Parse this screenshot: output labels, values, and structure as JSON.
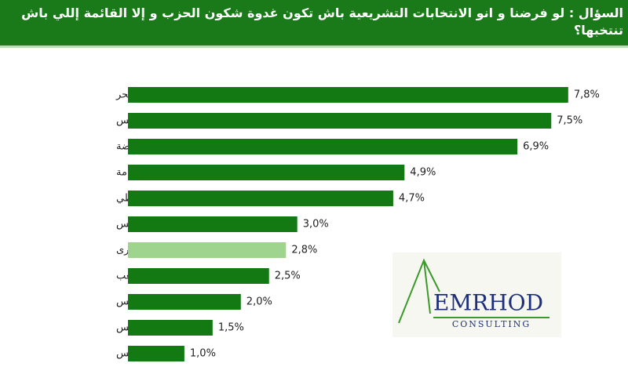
{
  "chart_data": {
    "type": "hbar",
    "title": "السؤال : لو فرضنا و انو الانتخابات التشريعية باش تكون غدوة شكون الحزب و إلا القائمة إللي باش تنتخبها؟",
    "categories": [
      "الحزب الدستوري الحر",
      "حزب قلب تونس",
      "حركة النهضة",
      "إئتلاف الكرامة",
      "التيار الديمقراطي",
      "تحيا تونس",
      "أحزاب أخرى",
      "حركة الشعب",
      "نداء تونس",
      "هنا تونس",
      "حراك تونس"
    ],
    "values": [
      7.8,
      7.5,
      6.9,
      4.9,
      4.7,
      3.0,
      2.8,
      2.5,
      2.0,
      1.5,
      1.0
    ],
    "value_labels": [
      "7,8%",
      "7,5%",
      "6,9%",
      "4,9%",
      "4,7%",
      "3,0%",
      "2,8%",
      "2,5%",
      "2,0%",
      "1,5%",
      "1,0%"
    ],
    "colors": [
      "#137a13",
      "#137a13",
      "#137a13",
      "#137a13",
      "#137a13",
      "#137a13",
      "#9fd48e",
      "#137a13",
      "#137a13",
      "#137a13",
      "#137a13"
    ]
  },
  "logo": {
    "name": "EMRHOD",
    "subtitle": "CONSULTING"
  }
}
